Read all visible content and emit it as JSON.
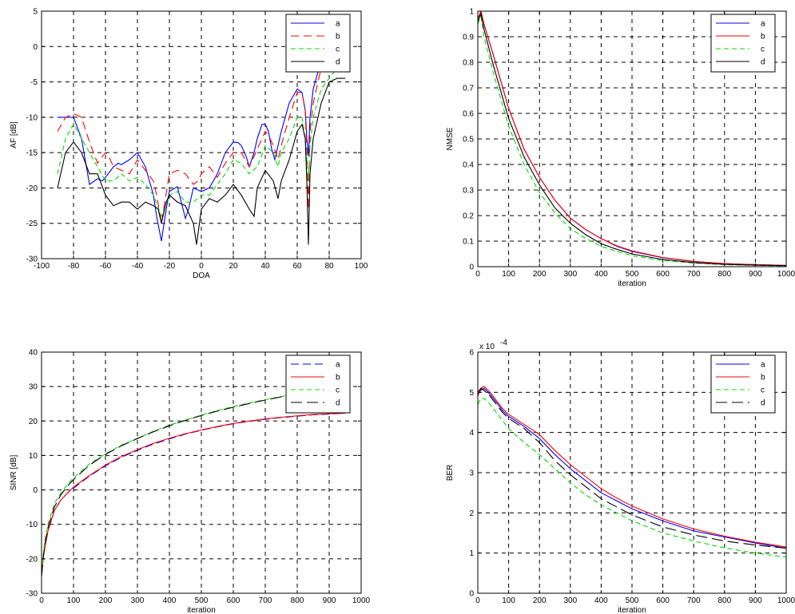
{
  "chart_data": [
    {
      "type": "line",
      "xlabel": "DOA",
      "ylabel": "AF [dB]",
      "xlim": [
        -100,
        100
      ],
      "ylim": [
        -30,
        5
      ],
      "xticks": [
        -100,
        -80,
        -60,
        -40,
        -20,
        0,
        20,
        40,
        60,
        80,
        100
      ],
      "yticks": [
        -30,
        -25,
        -20,
        -15,
        -10,
        -5,
        0,
        5
      ],
      "grid": true,
      "legend_position": "top-right",
      "series": [
        {
          "name": "a",
          "color": "#0000ff",
          "dash": "solid",
          "x": [
            -90,
            -85,
            -80,
            -75,
            -70,
            -65,
            -62,
            -60,
            -55,
            -52,
            -50,
            -45,
            -40,
            -35,
            -30,
            -28,
            -25,
            -22,
            -20,
            -15,
            -10,
            -8,
            -5,
            0,
            5,
            10,
            15,
            20,
            23,
            25,
            28,
            30,
            33,
            35,
            38,
            40,
            42,
            44,
            46,
            48,
            50,
            55,
            60,
            63,
            65,
            66,
            67,
            68,
            70,
            75,
            80,
            83,
            85,
            90
          ],
          "y": [
            -10,
            -10,
            -10,
            -13,
            -19.5,
            -18.7,
            -19,
            -18.5,
            -17,
            -16.5,
            -16.7,
            -16,
            -15,
            -17,
            -21,
            -24,
            -27.5,
            -23,
            -20.5,
            -19.8,
            -24.3,
            -23,
            -20,
            -20.5,
            -20,
            -18,
            -15,
            -13.5,
            -13.6,
            -14,
            -15.5,
            -17,
            -15,
            -13,
            -11,
            -11,
            -12,
            -14.5,
            -16,
            -14,
            -12,
            -8,
            -6,
            -6.5,
            -9,
            -13,
            -15.5,
            -10,
            -6,
            -2,
            0,
            0.8,
            0.8,
            0.5
          ]
        },
        {
          "name": "b",
          "color": "#ff0000",
          "dash": "10,6",
          "x": [
            -90,
            -85,
            -80,
            -75,
            -70,
            -65,
            -60,
            -58,
            -55,
            -50,
            -45,
            -40,
            -35,
            -30,
            -28,
            -25,
            -20,
            -15,
            -10,
            -5,
            -2,
            0,
            5,
            10,
            15,
            20,
            25,
            30,
            35,
            40,
            42,
            45,
            48,
            50,
            55,
            60,
            63,
            65,
            66,
            67,
            68,
            70,
            75,
            80,
            85,
            90
          ],
          "y": [
            -12,
            -10,
            -9.5,
            -10,
            -13.5,
            -16.5,
            -15,
            -15.5,
            -17,
            -17.5,
            -18,
            -16,
            -17.5,
            -19,
            -21,
            -25,
            -18,
            -17.5,
            -18,
            -19.5,
            -19,
            -18,
            -17,
            -18.5,
            -16.5,
            -15,
            -15,
            -17,
            -14.5,
            -12,
            -12.5,
            -14,
            -16,
            -14,
            -10,
            -6.5,
            -6.5,
            -9,
            -15,
            -23,
            -12,
            -8,
            -3,
            0,
            1,
            -0.2
          ]
        },
        {
          "name": "c",
          "color": "#00dd00",
          "dash": "6,4",
          "x": [
            -90,
            -85,
            -80,
            -75,
            -70,
            -65,
            -60,
            -55,
            -50,
            -45,
            -40,
            -35,
            -30,
            -25,
            -20,
            -15,
            -10,
            -5,
            0,
            5,
            10,
            15,
            20,
            25,
            30,
            35,
            40,
            45,
            48,
            50,
            55,
            60,
            63,
            65,
            67,
            68,
            70,
            75,
            80,
            85,
            90
          ],
          "y": [
            -18,
            -13,
            -11,
            -13,
            -15,
            -17,
            -19,
            -19,
            -18,
            -19,
            -18.5,
            -19.5,
            -21,
            -24,
            -21,
            -20.5,
            -22,
            -22,
            -21,
            -21,
            -19.5,
            -18,
            -16,
            -16.5,
            -18,
            -17,
            -14,
            -15,
            -17,
            -15,
            -13,
            -10,
            -10,
            -13,
            -19,
            -14,
            -10,
            -6,
            -4.5,
            -3,
            -3.5
          ]
        },
        {
          "name": "d",
          "color": "#000000",
          "dash": "solid",
          "x": [
            -90,
            -85,
            -80,
            -75,
            -70,
            -65,
            -60,
            -55,
            -50,
            -45,
            -40,
            -35,
            -30,
            -27,
            -25,
            -22,
            -20,
            -15,
            -10,
            -5,
            -3,
            0,
            5,
            10,
            15,
            20,
            25,
            30,
            33,
            35,
            40,
            45,
            48,
            50,
            55,
            60,
            63,
            65,
            66,
            67,
            68,
            70,
            75,
            80,
            85,
            90
          ],
          "y": [
            -20,
            -15,
            -13.5,
            -15,
            -18,
            -18,
            -21,
            -22.5,
            -22,
            -22,
            -23,
            -22,
            -22.5,
            -23,
            -25,
            -22,
            -21,
            -22,
            -22.5,
            -25,
            -28,
            -23,
            -21.5,
            -22,
            -21,
            -19.5,
            -21,
            -23,
            -24,
            -20,
            -17.5,
            -19,
            -21.5,
            -19,
            -16,
            -12,
            -11,
            -13,
            -19,
            -28,
            -18,
            -13,
            -8,
            -5,
            -4.5,
            -4.5
          ]
        }
      ]
    },
    {
      "type": "line",
      "xlabel": "iteration",
      "ylabel": "NMSE",
      "xlim": [
        0,
        1000
      ],
      "ylim": [
        0,
        1
      ],
      "xticks": [
        0,
        100,
        200,
        300,
        400,
        500,
        600,
        700,
        800,
        900,
        1000
      ],
      "yticks": [
        0,
        0.1,
        0.2,
        0.3,
        0.4,
        0.5,
        0.6,
        0.7,
        0.8,
        0.9,
        1
      ],
      "grid": true,
      "legend_position": "top-right",
      "series": [
        {
          "name": "a",
          "color": "#0000ff",
          "dash": "solid",
          "x": [
            0,
            10,
            20,
            50,
            100,
            150,
            200,
            250,
            300,
            350,
            400,
            450,
            500,
            600,
            700,
            800,
            900,
            1000
          ],
          "y": [
            0.97,
            1.0,
            0.95,
            0.83,
            0.62,
            0.46,
            0.35,
            0.26,
            0.19,
            0.145,
            0.11,
            0.08,
            0.06,
            0.035,
            0.02,
            0.012,
            0.008,
            0.005
          ]
        },
        {
          "name": "b",
          "color": "#ff0000",
          "dash": "solid",
          "x": [
            0,
            10,
            20,
            50,
            100,
            150,
            200,
            250,
            300,
            350,
            400,
            450,
            500,
            600,
            700,
            800,
            900,
            1000
          ],
          "y": [
            0.97,
            1.0,
            0.95,
            0.83,
            0.62,
            0.46,
            0.35,
            0.26,
            0.19,
            0.145,
            0.11,
            0.082,
            0.062,
            0.036,
            0.021,
            0.012,
            0.008,
            0.005
          ]
        },
        {
          "name": "c",
          "color": "#00dd00",
          "dash": "6,4",
          "x": [
            0,
            10,
            20,
            50,
            100,
            150,
            200,
            250,
            300,
            350,
            400,
            450,
            500,
            600,
            700,
            800,
            900,
            1000
          ],
          "y": [
            0.95,
            0.98,
            0.9,
            0.76,
            0.55,
            0.4,
            0.29,
            0.21,
            0.15,
            0.11,
            0.08,
            0.06,
            0.043,
            0.024,
            0.014,
            0.008,
            0.005,
            0.003
          ]
        },
        {
          "name": "d",
          "color": "#000000",
          "dash": "solid",
          "x": [
            0,
            10,
            20,
            50,
            100,
            150,
            200,
            250,
            300,
            350,
            400,
            450,
            500,
            600,
            700,
            800,
            900,
            1000
          ],
          "y": [
            0.96,
            0.99,
            0.93,
            0.79,
            0.58,
            0.43,
            0.32,
            0.23,
            0.17,
            0.125,
            0.09,
            0.068,
            0.05,
            0.028,
            0.016,
            0.009,
            0.006,
            0.004
          ]
        }
      ]
    },
    {
      "type": "line",
      "xlabel": "iteration",
      "ylabel": "SINR [dB]",
      "xlim": [
        0,
        1000
      ],
      "ylim": [
        -30,
        40
      ],
      "xticks": [
        0,
        100,
        200,
        300,
        400,
        500,
        600,
        700,
        800,
        900,
        1000
      ],
      "yticks": [
        -30,
        -20,
        -10,
        0,
        10,
        20,
        30,
        40
      ],
      "grid": true,
      "legend_position": "top-right",
      "series": [
        {
          "name": "a",
          "color": "#0000ff",
          "dash": "10,5",
          "x": [
            0,
            5,
            10,
            20,
            40,
            60,
            80,
            100,
            150,
            200,
            250,
            300,
            350,
            400,
            450,
            500,
            550,
            600,
            650,
            700,
            750,
            800,
            850,
            900,
            950
          ],
          "y": [
            -25,
            -20,
            -17,
            -12,
            -6,
            -3,
            -1,
            0.5,
            4,
            7,
            9.5,
            11.5,
            13.3,
            14.8,
            16.2,
            17.3,
            18.3,
            19.2,
            19.9,
            20.5,
            21,
            21.4,
            21.8,
            22,
            22.3
          ]
        },
        {
          "name": "b",
          "color": "#ff0000",
          "dash": "solid",
          "x": [
            0,
            5,
            10,
            20,
            40,
            60,
            80,
            100,
            150,
            200,
            250,
            300,
            350,
            400,
            450,
            500,
            550,
            600,
            650,
            700,
            750,
            800,
            850,
            900,
            950
          ],
          "y": [
            -25,
            -20,
            -17,
            -12,
            -6,
            -3,
            -1,
            0.8,
            4.2,
            7.2,
            9.7,
            11.7,
            13.5,
            15,
            16.3,
            17.4,
            18.4,
            19.3,
            20,
            20.6,
            21.1,
            21.5,
            21.9,
            22.1,
            22.3
          ]
        },
        {
          "name": "c",
          "color": "#00dd00",
          "dash": "6,4",
          "x": [
            0,
            5,
            10,
            20,
            40,
            60,
            80,
            100,
            150,
            200,
            250,
            300,
            350,
            400,
            450,
            500,
            550,
            600,
            650,
            700,
            750,
            800,
            850,
            900,
            950
          ],
          "y": [
            -24,
            -19,
            -15,
            -10,
            -4,
            -1,
            1.5,
            3.5,
            7.5,
            10.5,
            13,
            15,
            17,
            18.8,
            20.3,
            21.7,
            23,
            24.2,
            25.2,
            26.2,
            27.1,
            27.9,
            28.6,
            29.2,
            29.8
          ]
        },
        {
          "name": "d",
          "color": "#000000",
          "dash": "14,6",
          "x": [
            0,
            5,
            10,
            20,
            40,
            60,
            80,
            100,
            150,
            200,
            250,
            300,
            350,
            400,
            450,
            500,
            550,
            600,
            650,
            700,
            750,
            800,
            850,
            900,
            950
          ],
          "y": [
            -25,
            -20,
            -16,
            -11,
            -5,
            -1.5,
            1,
            3,
            7.2,
            10.3,
            12.8,
            14.9,
            16.9,
            18.6,
            20.2,
            21.6,
            22.9,
            24,
            25.1,
            26.1,
            27,
            27.8,
            28.5,
            29.1,
            29.6
          ]
        }
      ]
    },
    {
      "type": "line",
      "xlabel": "iteration",
      "ylabel": "BER",
      "exponent_label": "x 10",
      "exponent_power": "-4",
      "xlim": [
        0,
        1000
      ],
      "ylim": [
        0,
        6
      ],
      "xticks": [
        0,
        100,
        200,
        300,
        400,
        500,
        600,
        700,
        800,
        900,
        1000
      ],
      "yticks": [
        0,
        1,
        2,
        3,
        4,
        5,
        6
      ],
      "grid": true,
      "legend_position": "top-right",
      "series": [
        {
          "name": "a",
          "color": "#0000ff",
          "dash": "solid",
          "x": [
            0,
            10,
            20,
            40,
            60,
            80,
            100,
            150,
            200,
            250,
            300,
            350,
            400,
            450,
            500,
            600,
            700,
            800,
            900,
            1000
          ],
          "y": [
            4.95,
            5.05,
            5.1,
            4.95,
            4.75,
            4.55,
            4.4,
            4.15,
            3.85,
            3.45,
            3.1,
            2.8,
            2.5,
            2.3,
            2.1,
            1.8,
            1.55,
            1.4,
            1.25,
            1.12
          ]
        },
        {
          "name": "b",
          "color": "#ff0000",
          "dash": "solid",
          "x": [
            0,
            10,
            20,
            40,
            60,
            80,
            100,
            150,
            200,
            250,
            300,
            350,
            400,
            450,
            500,
            600,
            700,
            800,
            900,
            1000
          ],
          "y": [
            4.9,
            5.1,
            5.15,
            5.0,
            4.8,
            4.6,
            4.45,
            4.2,
            3.95,
            3.55,
            3.2,
            2.9,
            2.6,
            2.37,
            2.17,
            1.85,
            1.6,
            1.42,
            1.27,
            1.15
          ]
        },
        {
          "name": "c",
          "color": "#00dd00",
          "dash": "6,4",
          "x": [
            0,
            10,
            20,
            40,
            60,
            80,
            100,
            150,
            200,
            250,
            300,
            350,
            400,
            450,
            500,
            600,
            700,
            800,
            900,
            1000
          ],
          "y": [
            4.7,
            4.85,
            4.85,
            4.7,
            4.5,
            4.3,
            4.1,
            3.75,
            3.45,
            3.1,
            2.75,
            2.45,
            2.2,
            2.0,
            1.8,
            1.5,
            1.3,
            1.13,
            1.0,
            0.9
          ]
        },
        {
          "name": "d",
          "color": "#000000",
          "dash": "14,6",
          "x": [
            0,
            10,
            20,
            40,
            60,
            80,
            100,
            150,
            200,
            250,
            300,
            350,
            400,
            450,
            500,
            600,
            700,
            800,
            900,
            1000
          ],
          "y": [
            5.0,
            5.1,
            5.05,
            4.9,
            4.7,
            4.5,
            4.35,
            4.1,
            3.75,
            3.3,
            2.95,
            2.65,
            2.35,
            2.15,
            1.95,
            1.65,
            1.45,
            1.3,
            1.2,
            1.12
          ]
        }
      ]
    }
  ]
}
